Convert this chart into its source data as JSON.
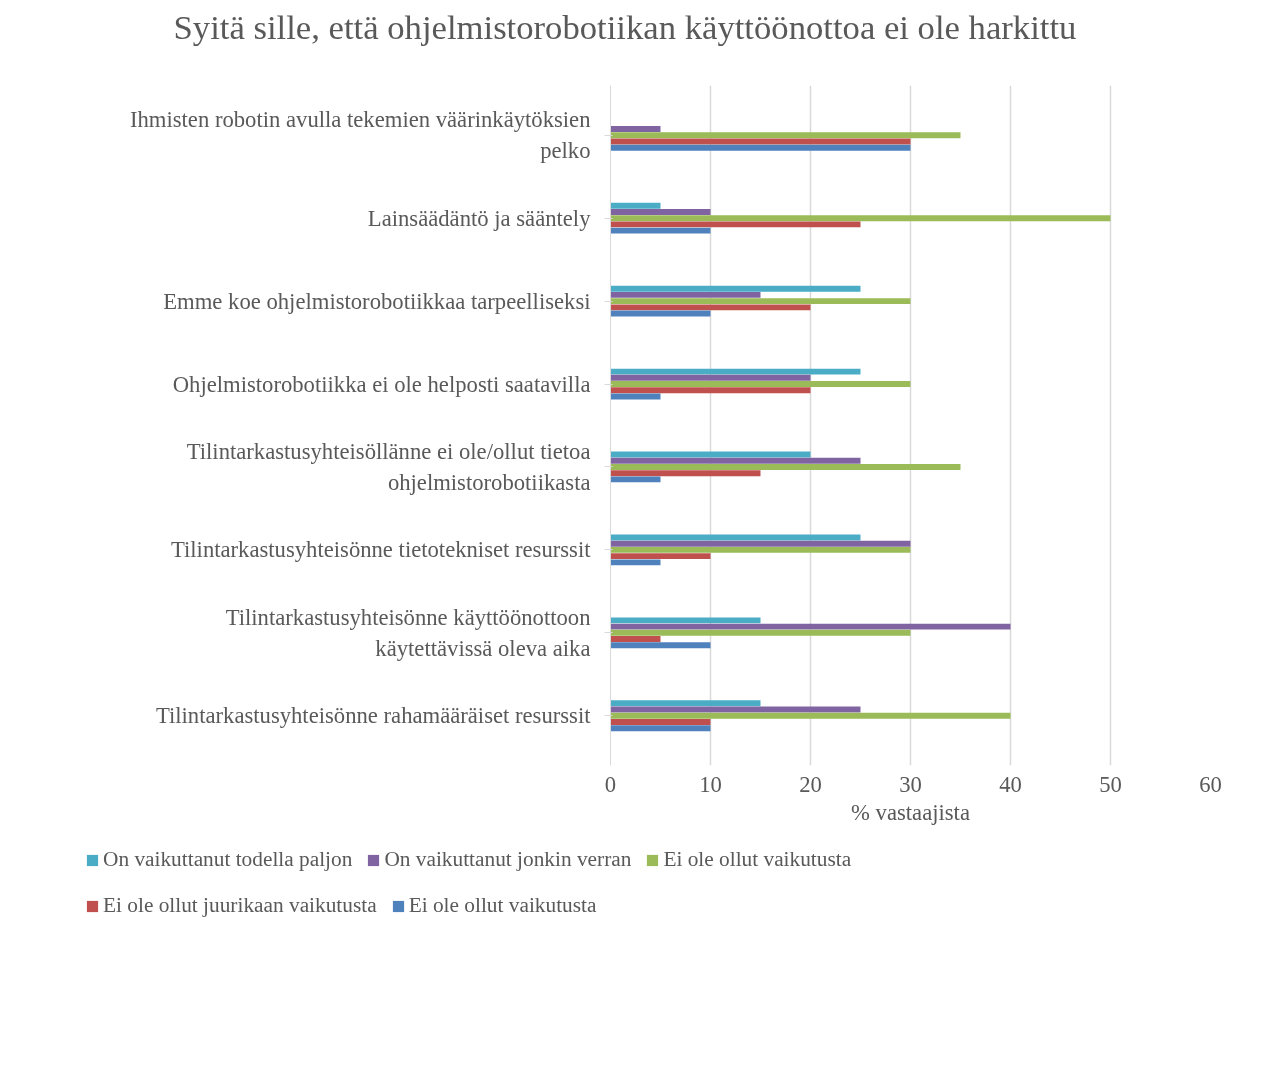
{
  "chart_data": {
    "type": "bar",
    "orientation": "horizontal",
    "title": "Syitä sille, että ohjelmistorobotiikan käyttöönottoa ei ole harkittu",
    "xlabel": "% vastaajista",
    "categories": [
      "Ihmisten robotin avulla tekemien väärinkäytöksien pelko",
      "Lainsäädäntö ja sääntely",
      "Emme koe ohjelmistorobotiikkaa tarpeelliseksi",
      "Ohjelmistorobotiikka ei ole helposti saatavilla",
      "Tilintarkastusyhteisöllänne ei ole/ollut tietoa ohjelmistorobotiikasta",
      "Tilintarkastusyhteisönne tietotekniset resurssit",
      "Tilintarkastusyhteisönne käyttöönottoon käytettävissä oleva aika",
      "Tilintarkastusyhteisönne rahamääräiset resurssit"
    ],
    "series": [
      {
        "name": "On vaikuttanut todella paljon",
        "color": "#4bacc6",
        "values": [
          0,
          5,
          25,
          25,
          20,
          25,
          15,
          15
        ]
      },
      {
        "name": "On vaikuttanut jonkin verran",
        "color": "#8064a2",
        "values": [
          5,
          10,
          15,
          20,
          25,
          30,
          40,
          25
        ]
      },
      {
        "name": "Ei ole ollut vaikutusta",
        "color": "#9bbb59",
        "values": [
          35,
          50,
          30,
          30,
          35,
          30,
          30,
          40
        ]
      },
      {
        "name": "Ei ole ollut juurikaan vaikutusta",
        "color": "#c0504d",
        "values": [
          30,
          25,
          20,
          20,
          15,
          10,
          5,
          10
        ]
      },
      {
        "name": "Ei ole ollut vaikutusta",
        "color": "#4f81bd",
        "values": [
          30,
          10,
          10,
          5,
          5,
          5,
          10,
          10
        ]
      }
    ],
    "xlim": [
      0,
      60
    ],
    "xticks": [
      0,
      10,
      20,
      30,
      40,
      50,
      60
    ],
    "grid": "x",
    "legend": "bottom"
  }
}
